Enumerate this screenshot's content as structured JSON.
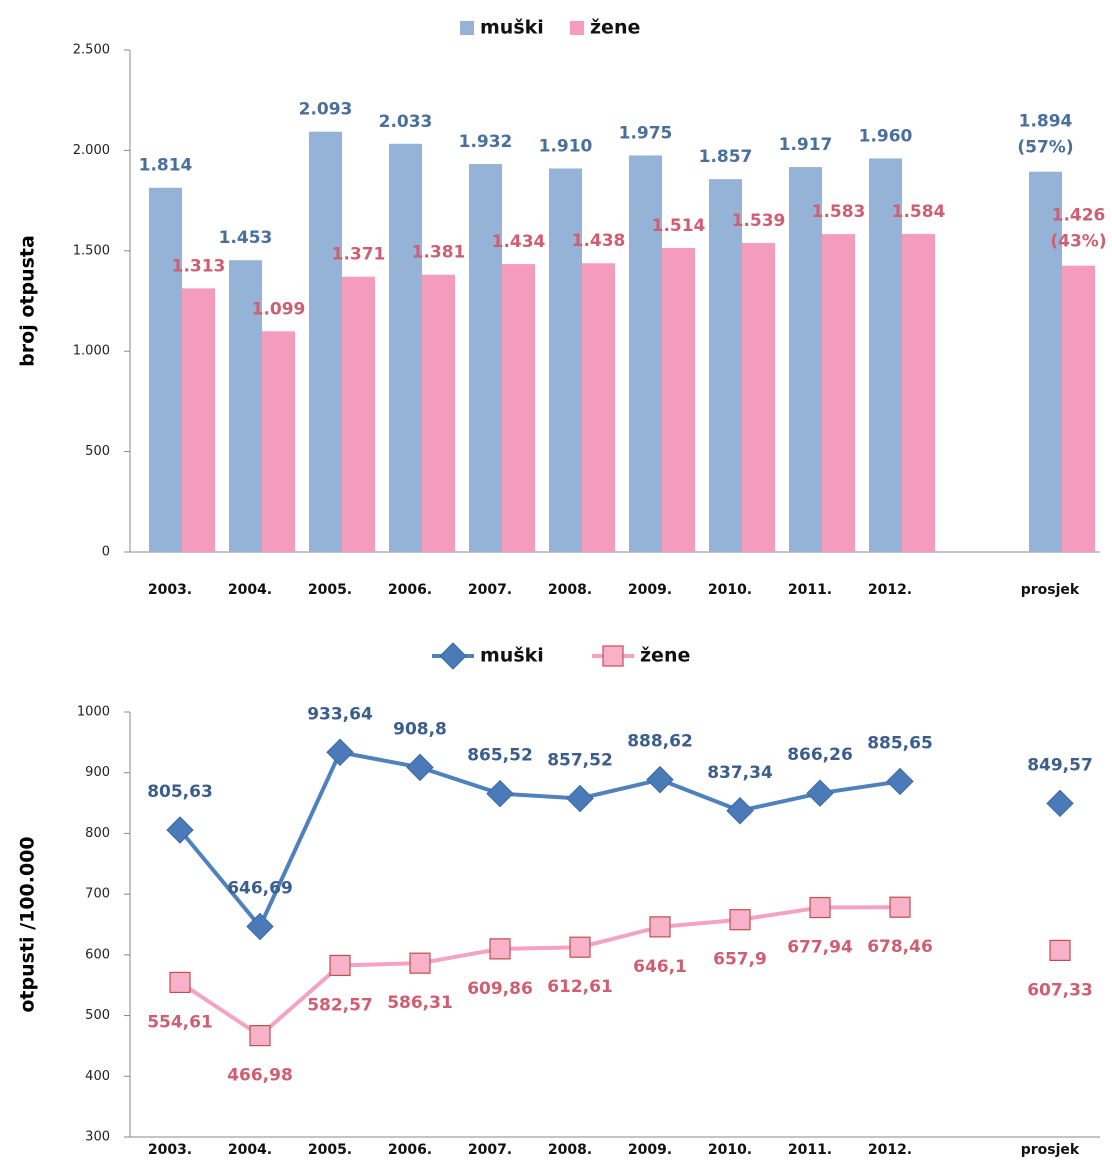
{
  "chart_data": [
    {
      "type": "bar",
      "y_label": "broj otpusta",
      "categories": [
        "2003.",
        "2004.",
        "2005.",
        "2006.",
        "2007.",
        "2008.",
        "2009.",
        "2010.",
        "2011.",
        "2012.",
        null,
        "prosjek"
      ],
      "series": [
        {
          "name": "muški",
          "color": "#95b3d7",
          "label_color": "#4a6f9c",
          "values": [
            1814,
            1453,
            2093,
            2033,
            1932,
            1910,
            1975,
            1857,
            1917,
            1960,
            null,
            1894
          ],
          "value_labels": [
            "1.814",
            "1.453",
            "2.093",
            "2.033",
            "1.932",
            "1.910",
            "1.975",
            "1.857",
            "1.917",
            "1.960",
            null,
            "1.894"
          ],
          "share_label": "(57%)"
        },
        {
          "name": "žene",
          "color": "#f59bbd",
          "label_color": "#cf5e72",
          "values": [
            1313,
            1099,
            1371,
            1381,
            1434,
            1438,
            1514,
            1539,
            1583,
            1584,
            null,
            1426
          ],
          "value_labels": [
            "1.313",
            "1.099",
            "1.371",
            "1.381",
            "1.434",
            "1.438",
            "1.514",
            "1.539",
            "1.583",
            "1.584",
            null,
            "1.426"
          ],
          "share_label": "(43%)"
        }
      ],
      "ylim": [
        0,
        2500
      ],
      "yticks": [
        0,
        500,
        {
          "value": 1000,
          "label": "1.000"
        },
        {
          "value": 1500,
          "label": "1.500"
        },
        {
          "value": 2000,
          "label": "2.000"
        },
        {
          "value": 2500,
          "label": "2.500"
        }
      ],
      "legend": "top"
    },
    {
      "type": "line",
      "y_label": "otpusti /100.000",
      "categories": [
        "2003.",
        "2004.",
        "2005.",
        "2006.",
        "2007.",
        "2008.",
        "2009.",
        "2010.",
        "2011.",
        "2012.",
        null,
        "prosjek"
      ],
      "series": [
        {
          "name": "muški",
          "color": "#4f81bd",
          "label_color": "#3b5e8c",
          "marker": "diamond",
          "values": [
            805.63,
            646.69,
            933.64,
            908.8,
            865.52,
            857.52,
            888.62,
            837.34,
            866.26,
            885.65,
            null,
            849.57
          ],
          "value_labels": [
            "805,63",
            "646,69",
            "933,64",
            "908,8",
            "865,52",
            "857,52",
            "888,62",
            "837,34",
            "866,26",
            "885,65",
            null,
            "849,57"
          ]
        },
        {
          "name": "žene",
          "color": "#f4a3c2",
          "label_color": "#cf5e72",
          "marker": "square",
          "values": [
            554.61,
            466.98,
            582.57,
            586.31,
            609.86,
            612.61,
            646.1,
            657.9,
            677.94,
            678.46,
            null,
            607.33
          ],
          "value_labels": [
            "554,61",
            "466,98",
            "582,57",
            "586,31",
            "609,86",
            "612,61",
            "646,1",
            "657,9",
            "677,94",
            "678,46",
            null,
            "607,33"
          ]
        }
      ],
      "ylim": [
        300,
        1000
      ],
      "yticks": [
        300,
        400,
        500,
        600,
        700,
        800,
        900,
        1000
      ],
      "legend": "top"
    }
  ]
}
